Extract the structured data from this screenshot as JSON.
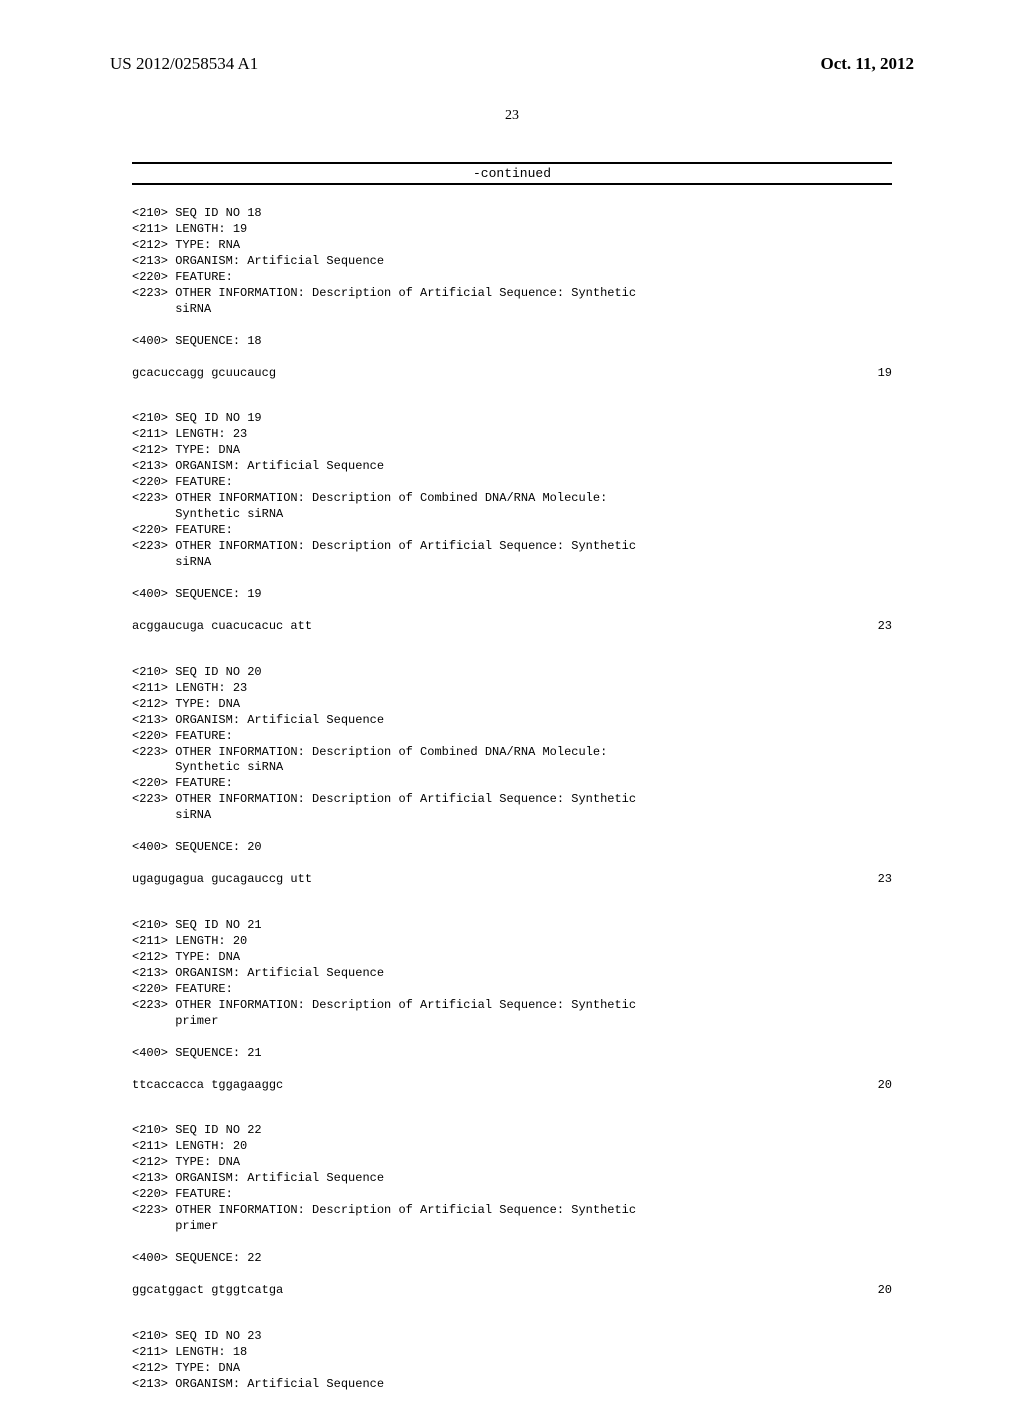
{
  "header": {
    "publication_number": "US 2012/0258534 A1",
    "publication_date": "Oct. 11, 2012"
  },
  "page_number": "23",
  "continued_label": "-continued",
  "entries": [
    {
      "lines": [
        "<210> SEQ ID NO 18",
        "<211> LENGTH: 19",
        "<212> TYPE: RNA",
        "<213> ORGANISM: Artificial Sequence",
        "<220> FEATURE:",
        "<223> OTHER INFORMATION: Description of Artificial Sequence: Synthetic",
        "      siRNA"
      ],
      "sequence_label": "<400> SEQUENCE: 18",
      "sequence": "gcacuccagg gcuucaucg",
      "length": "19"
    },
    {
      "lines": [
        "<210> SEQ ID NO 19",
        "<211> LENGTH: 23",
        "<212> TYPE: DNA",
        "<213> ORGANISM: Artificial Sequence",
        "<220> FEATURE:",
        "<223> OTHER INFORMATION: Description of Combined DNA/RNA Molecule:",
        "      Synthetic siRNA",
        "<220> FEATURE:",
        "<223> OTHER INFORMATION: Description of Artificial Sequence: Synthetic",
        "      siRNA"
      ],
      "sequence_label": "<400> SEQUENCE: 19",
      "sequence": "acggaucuga cuacucacuc att",
      "length": "23"
    },
    {
      "lines": [
        "<210> SEQ ID NO 20",
        "<211> LENGTH: 23",
        "<212> TYPE: DNA",
        "<213> ORGANISM: Artificial Sequence",
        "<220> FEATURE:",
        "<223> OTHER INFORMATION: Description of Combined DNA/RNA Molecule:",
        "      Synthetic siRNA",
        "<220> FEATURE:",
        "<223> OTHER INFORMATION: Description of Artificial Sequence: Synthetic",
        "      siRNA"
      ],
      "sequence_label": "<400> SEQUENCE: 20",
      "sequence": "ugagugagua gucagauccg utt",
      "length": "23"
    },
    {
      "lines": [
        "<210> SEQ ID NO 21",
        "<211> LENGTH: 20",
        "<212> TYPE: DNA",
        "<213> ORGANISM: Artificial Sequence",
        "<220> FEATURE:",
        "<223> OTHER INFORMATION: Description of Artificial Sequence: Synthetic",
        "      primer"
      ],
      "sequence_label": "<400> SEQUENCE: 21",
      "sequence": "ttcaccacca tggagaaggc",
      "length": "20"
    },
    {
      "lines": [
        "<210> SEQ ID NO 22",
        "<211> LENGTH: 20",
        "<212> TYPE: DNA",
        "<213> ORGANISM: Artificial Sequence",
        "<220> FEATURE:",
        "<223> OTHER INFORMATION: Description of Artificial Sequence: Synthetic",
        "      primer"
      ],
      "sequence_label": "<400> SEQUENCE: 22",
      "sequence": "ggcatggact gtggtcatga",
      "length": "20"
    },
    {
      "lines": [
        "<210> SEQ ID NO 23",
        "<211> LENGTH: 18",
        "<212> TYPE: DNA",
        "<213> ORGANISM: Artificial Sequence"
      ]
    }
  ]
}
